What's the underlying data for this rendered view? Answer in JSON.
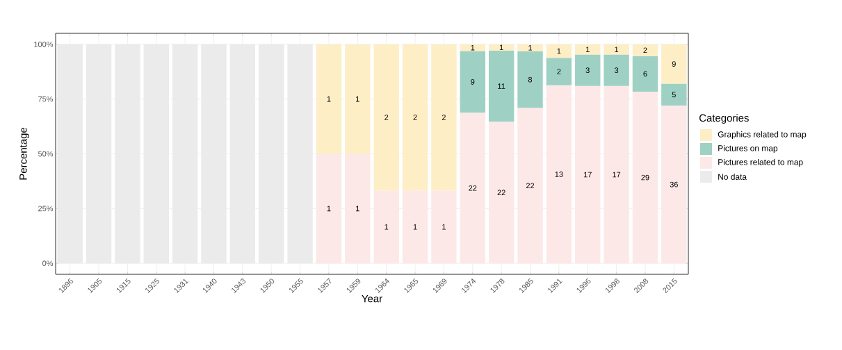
{
  "chart_data": {
    "type": "bar",
    "stacked": true,
    "xlabel": "Year",
    "ylabel": "Percentage",
    "legend_title": "Categories",
    "legend": "right",
    "grid": true,
    "categories": [
      "1896",
      "1905",
      "1915",
      "1925",
      "1931",
      "1940",
      "1943",
      "1950",
      "1955",
      "1957",
      "1959",
      "1964",
      "1965",
      "1969",
      "1974",
      "1978",
      "1985",
      "1991",
      "1996",
      "1998",
      "2008",
      "2015"
    ],
    "ylim": [
      -5,
      105
    ],
    "yticks": [
      {
        "value": 0,
        "label": "0%"
      },
      {
        "value": 25,
        "label": "25%"
      },
      {
        "value": 50,
        "label": "50%"
      },
      {
        "value": 75,
        "label": "75%"
      },
      {
        "value": 100,
        "label": "100%"
      }
    ],
    "series": [
      {
        "name": "Pictures related to map",
        "color": "#fde8e8",
        "values": [
          null,
          null,
          null,
          null,
          null,
          null,
          null,
          null,
          null,
          50,
          50,
          33.3,
          33.3,
          33.3,
          68.8,
          64.7,
          71.0,
          81.3,
          81.0,
          81.0,
          78.4,
          72.0
        ]
      },
      {
        "name": "Pictures on map",
        "color": "#9ed1c3",
        "values": [
          null,
          null,
          null,
          null,
          null,
          null,
          null,
          null,
          null,
          null,
          null,
          null,
          null,
          null,
          28.1,
          32.4,
          25.8,
          12.5,
          14.3,
          14.3,
          16.2,
          10.0
        ]
      },
      {
        "name": "Graphics related to map",
        "color": "#fdeec6",
        "values": [
          null,
          null,
          null,
          null,
          null,
          null,
          null,
          null,
          null,
          50,
          50,
          66.7,
          66.7,
          66.7,
          3.1,
          2.9,
          3.2,
          6.2,
          4.7,
          4.7,
          5.4,
          18.0
        ]
      },
      {
        "name": "No data",
        "color": "#ebebeb",
        "values": [
          100,
          100,
          100,
          100,
          100,
          100,
          100,
          100,
          100,
          null,
          null,
          null,
          null,
          null,
          null,
          null,
          null,
          null,
          null,
          null,
          null,
          null
        ]
      }
    ],
    "annotations": [
      "1",
      "1",
      "1",
      "1",
      "1",
      "22",
      "22",
      "22",
      "13",
      "17",
      "17",
      "29",
      "36",
      "9",
      "11",
      "8",
      "2",
      "3",
      "3",
      "6",
      "5",
      "1",
      "1",
      "2",
      "2",
      "2",
      "1",
      "1",
      "1",
      "1",
      "1",
      "1",
      "2",
      "9"
    ]
  }
}
